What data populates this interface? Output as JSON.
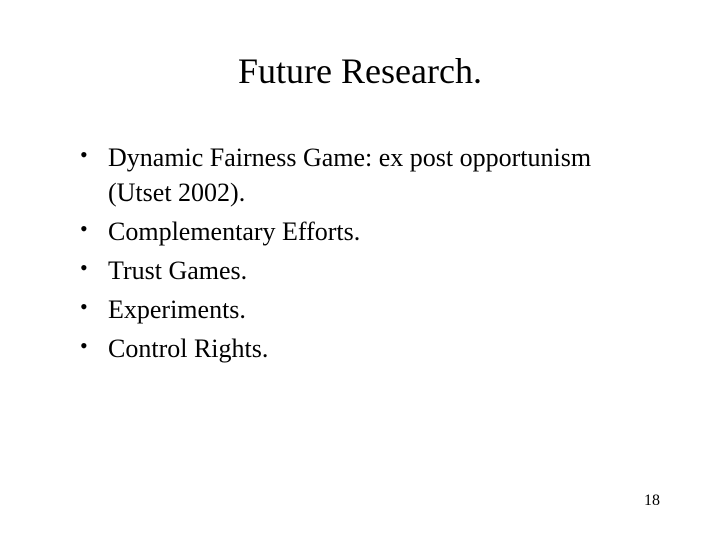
{
  "slide": {
    "title": "Future Research.",
    "bullets": [
      "Dynamic Fairness Game: ex post opportunism (Utset 2002).",
      "Complementary Efforts.",
      "Trust Games.",
      "Experiments.",
      "Control Rights."
    ],
    "page_number": "18"
  },
  "style": {
    "background_color": "#ffffff",
    "text_color": "#000000",
    "font_family": "Times New Roman",
    "title_fontsize": 36,
    "body_fontsize": 26,
    "page_number_fontsize": 16
  }
}
